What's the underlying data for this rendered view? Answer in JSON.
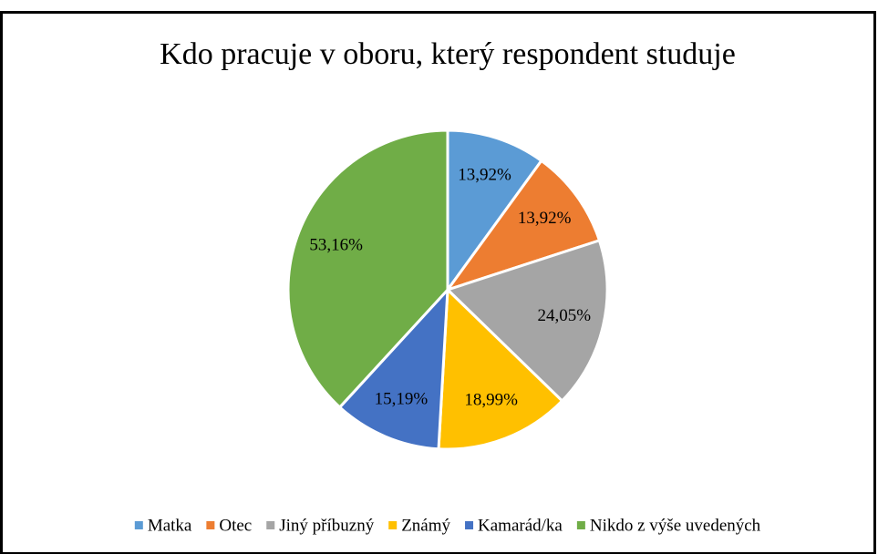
{
  "chart_data": {
    "type": "pie",
    "title": "Kdo pracuje v oboru, který respondent studuje",
    "categories": [
      "Matka",
      "Otec",
      "Jiný příbuzný",
      "Známý",
      "Kamarád/ka",
      "Nikdo z výše uvedených"
    ],
    "values": [
      13.92,
      13.92,
      24.05,
      18.99,
      15.19,
      53.16
    ],
    "value_labels": [
      "13,92%",
      "13,92%",
      "24,05%",
      "18,99%",
      "15,19%",
      "53,16%"
    ],
    "colors": [
      "#5b9bd5",
      "#ed7d31",
      "#a5a5a5",
      "#ffc000",
      "#4472c4",
      "#70ad47"
    ],
    "legend": "bottom"
  }
}
